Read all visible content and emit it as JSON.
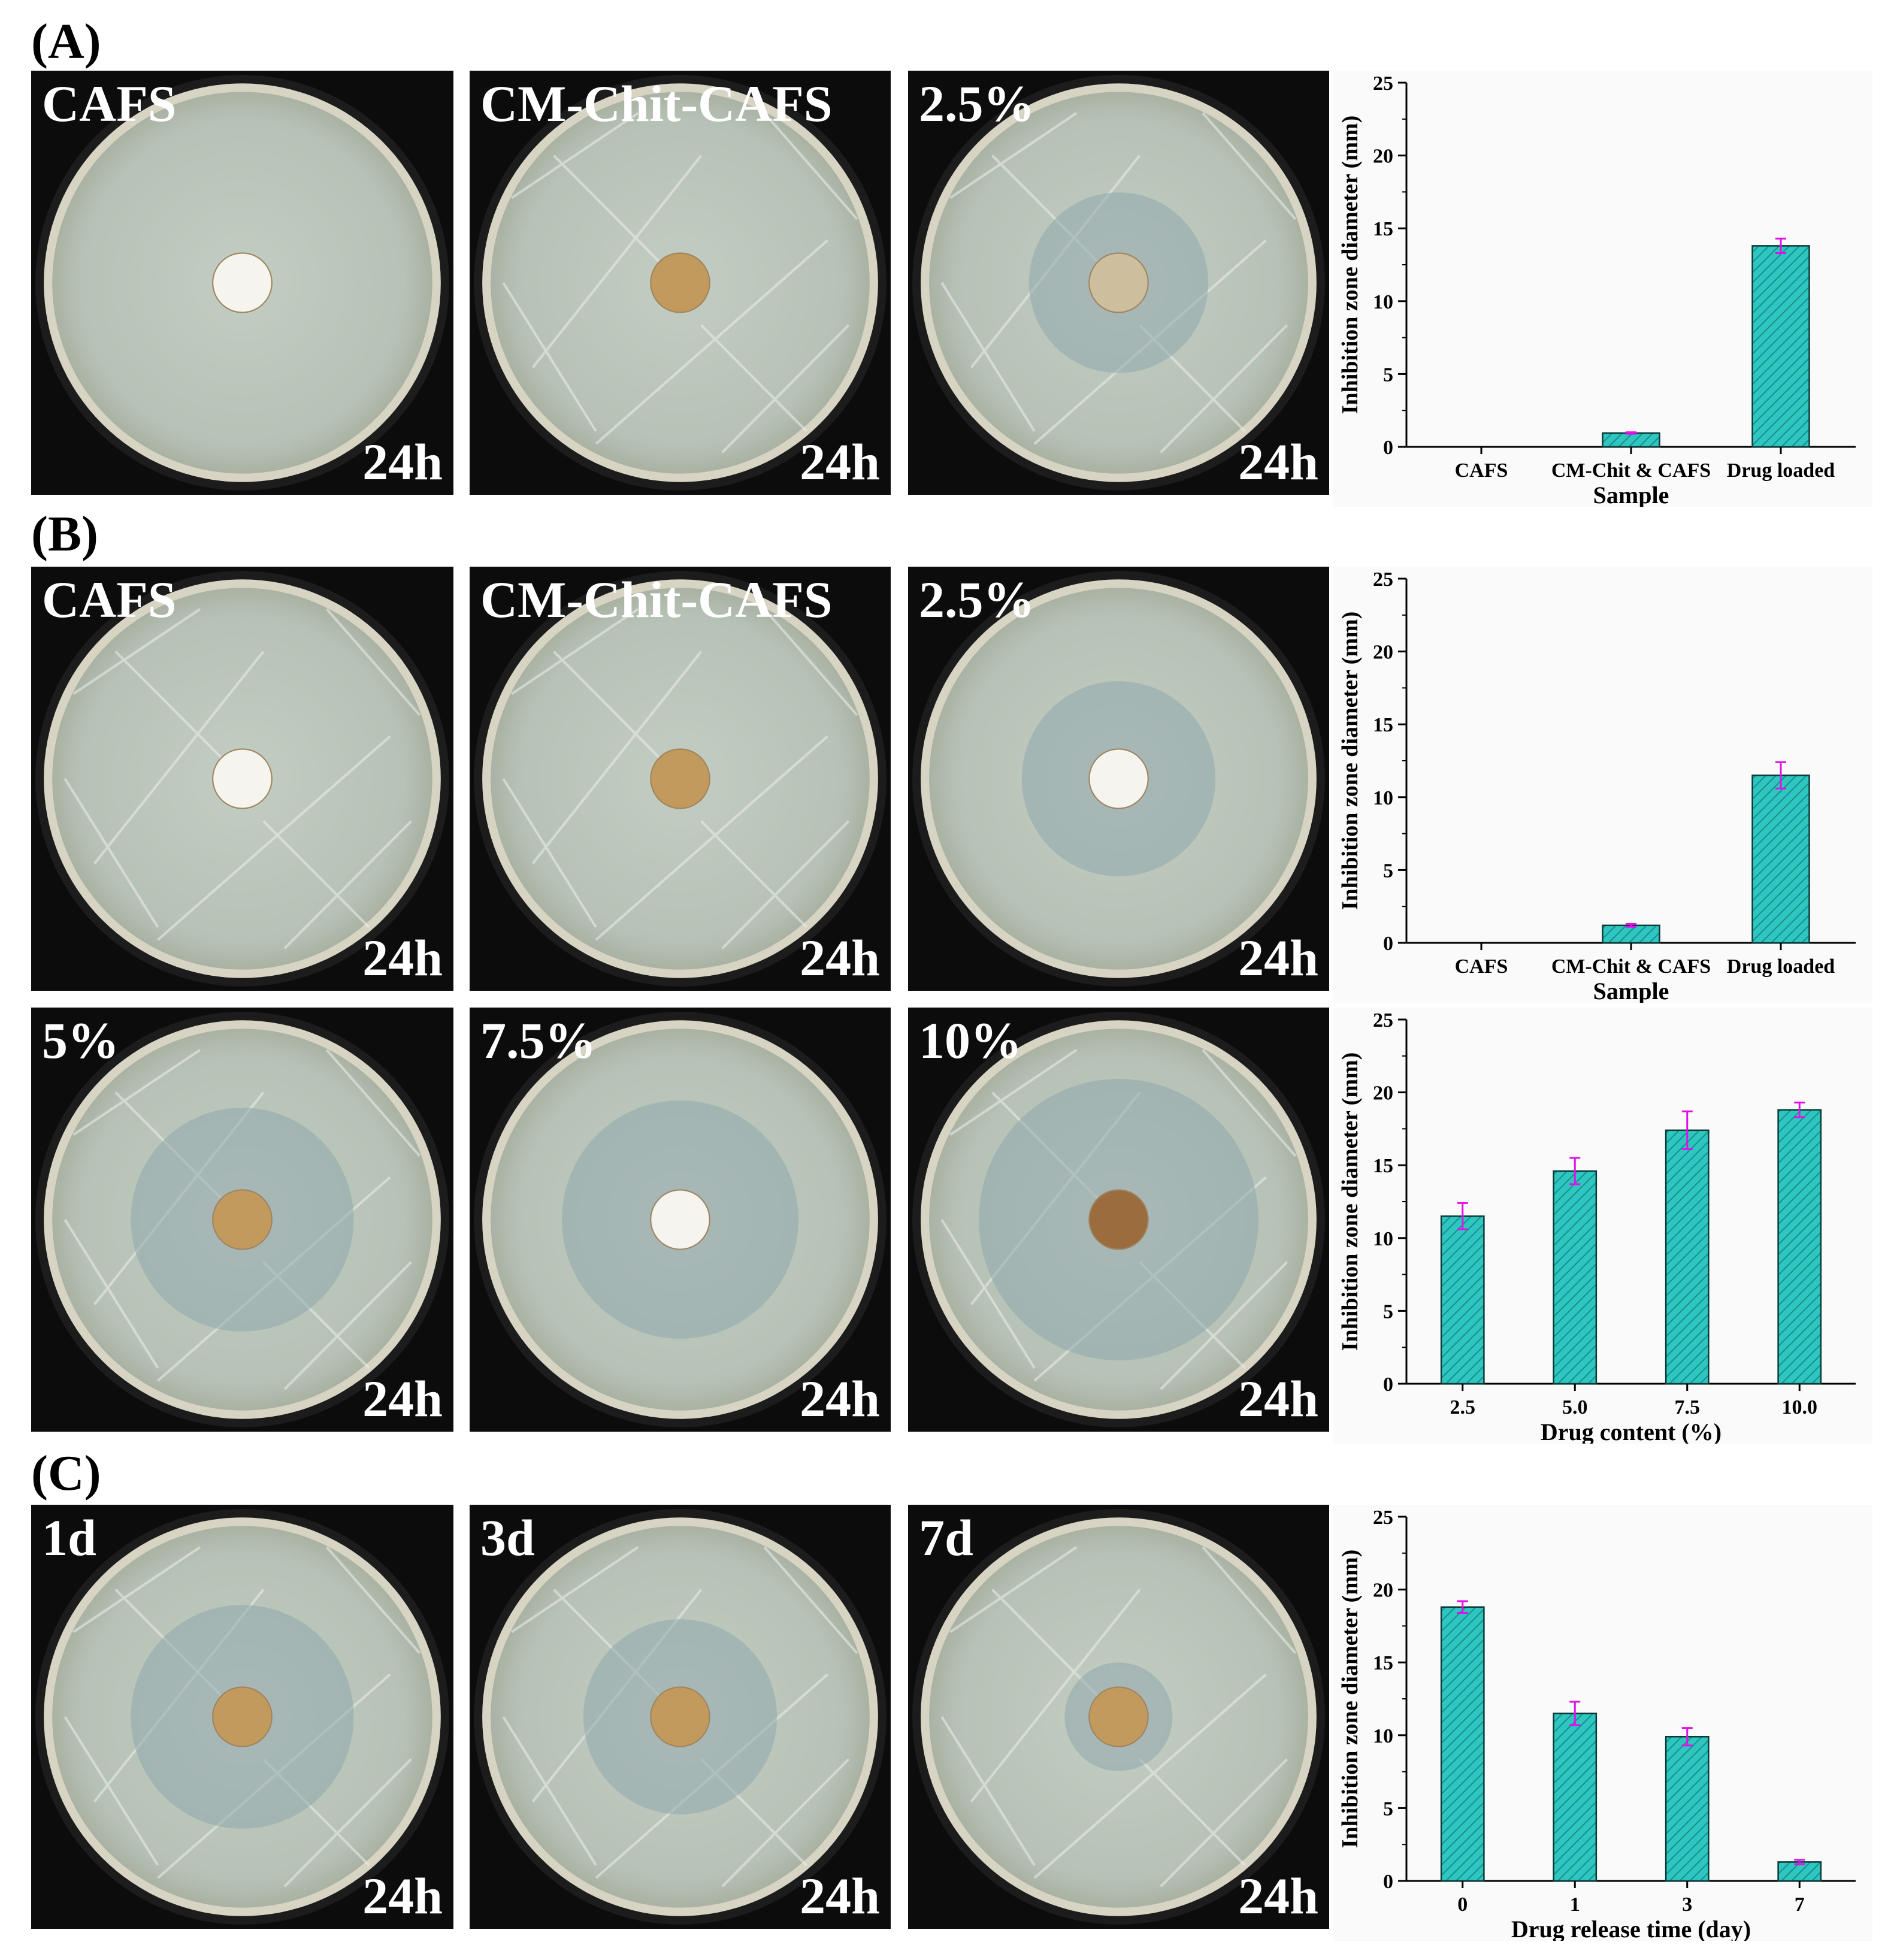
{
  "sections": {
    "a": {
      "label": "(A)"
    },
    "b": {
      "label": "(B)"
    },
    "c": {
      "label": "(C)"
    }
  },
  "photos": [
    {
      "label": "CAFS",
      "time": "24h",
      "disc": "white",
      "zone": 0,
      "streaks": false
    },
    {
      "label": "CM-Chit-CAFS",
      "time": "24h",
      "disc": "tan",
      "zone": 0,
      "streaks": true
    },
    {
      "label": "2.5%",
      "time": "24h",
      "disc": "pale",
      "zone": 0.45,
      "streaks": true
    },
    {
      "label": "CAFS",
      "time": "24h",
      "disc": "white",
      "zone": 0,
      "streaks": true
    },
    {
      "label": "CM-Chit-CAFS",
      "time": "24h",
      "disc": "tan",
      "zone": 0,
      "streaks": true
    },
    {
      "label": "2.5%",
      "time": "24h",
      "disc": "white",
      "zone": 0.5,
      "streaks": false
    },
    {
      "label": "5%",
      "time": "24h",
      "disc": "tan",
      "zone": 0.6,
      "streaks": true
    },
    {
      "label": "7.5%",
      "time": "24h",
      "disc": "white",
      "zone": 0.65,
      "streaks": false
    },
    {
      "label": "10%",
      "time": "24h",
      "disc": "brown",
      "zone": 0.8,
      "streaks": true
    },
    {
      "label": "1d",
      "time": "24h",
      "disc": "tan",
      "zone": 0.6,
      "streaks": true
    },
    {
      "label": "3d",
      "time": "24h",
      "disc": "tan",
      "zone": 0.5,
      "streaks": true
    },
    {
      "label": "7d",
      "time": "24h",
      "disc": "tan",
      "zone": 0.2,
      "streaks": true
    }
  ],
  "chart_data": [
    {
      "type": "bar",
      "categories": [
        "CAFS",
        "CM-Chit & CAFS",
        "Drug loaded"
      ],
      "values": [
        0,
        0.95,
        13.8
      ],
      "errors": [
        0,
        0.05,
        0.5
      ],
      "xlabel": "Sample",
      "ylabel": "Inhibition zone diameter (mm)",
      "ylim": [
        0,
        25
      ],
      "yticks": [
        "0",
        "5",
        "10",
        "15",
        "20",
        "25"
      ],
      "bar_color": "#2ec6c0",
      "error_color": "#e010e8"
    },
    {
      "type": "bar",
      "categories": [
        "CAFS",
        "CM-Chit & CAFS",
        "Drug loaded"
      ],
      "values": [
        0,
        1.2,
        11.5
      ],
      "errors": [
        0,
        0.1,
        0.9
      ],
      "xlabel": "Sample",
      "ylabel": "Inhibition zone diameter (mm)",
      "ylim": [
        0,
        25
      ],
      "yticks": [
        "0",
        "5",
        "10",
        "15",
        "20",
        "25"
      ],
      "bar_color": "#2ec6c0",
      "error_color": "#e010e8"
    },
    {
      "type": "bar",
      "categories": [
        "2.5",
        "5.0",
        "7.5",
        "10.0"
      ],
      "values": [
        11.5,
        14.6,
        17.4,
        18.8
      ],
      "errors": [
        0.9,
        0.9,
        1.3,
        0.5
      ],
      "xlabel": "Drug content (%)",
      "ylabel": "Inhibition zone diameter (mm)",
      "ylim": [
        0,
        25
      ],
      "yticks": [
        "0",
        "5",
        "10",
        "15",
        "20",
        "25"
      ],
      "bar_color": "#2ec6c0",
      "error_color": "#e010e8"
    },
    {
      "type": "bar",
      "categories": [
        "0",
        "1",
        "3",
        "7"
      ],
      "values": [
        18.8,
        11.5,
        9.9,
        1.3
      ],
      "errors": [
        0.4,
        0.8,
        0.6,
        0.15
      ],
      "xlabel": "Drug release time (day)",
      "ylabel": "Inhibition zone diameter (mm)",
      "ylim": [
        0,
        25
      ],
      "yticks": [
        "0",
        "5",
        "10",
        "15",
        "20",
        "25"
      ],
      "bar_color": "#2ec6c0",
      "error_color": "#e010e8"
    }
  ]
}
